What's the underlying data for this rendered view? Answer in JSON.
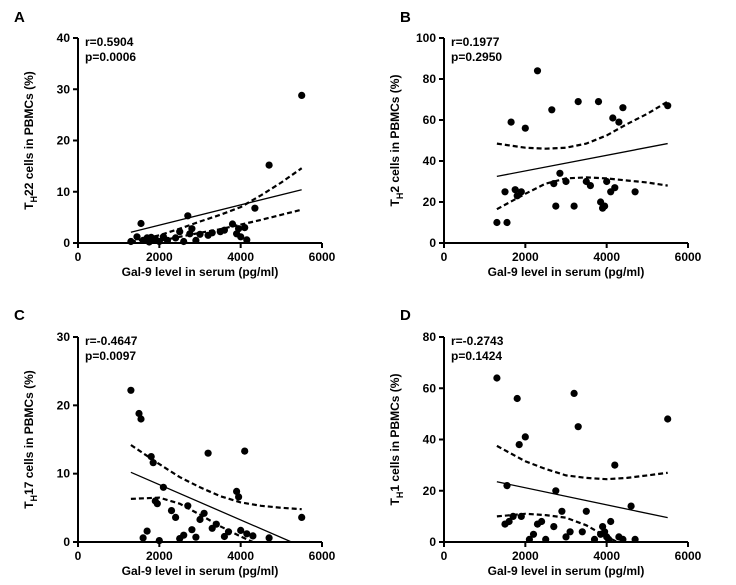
{
  "chart_data": [
    {
      "type": "scatter",
      "panel_label": "A",
      "xlabel": "Gal-9 level in serum (pg/ml)",
      "ylabel": {
        "base": "T",
        "sub": "H",
        "rest": "22 cells in PBMCs (%)"
      },
      "xlim": [
        0,
        6000
      ],
      "ylim": [
        0,
        40
      ],
      "x_ticks": [
        0,
        2000,
        4000,
        6000
      ],
      "y_ticks": [
        0,
        10,
        20,
        30,
        40
      ],
      "annotations": [
        "r=0.5904",
        "p=0.0006"
      ],
      "points": [
        [
          1300,
          0.3
        ],
        [
          1450,
          1.2
        ],
        [
          1550,
          3.8
        ],
        [
          1600,
          0.5
        ],
        [
          1700,
          1.0
        ],
        [
          1750,
          0.2
        ],
        [
          1800,
          1.1
        ],
        [
          1850,
          0.6
        ],
        [
          1900,
          0.8
        ],
        [
          2000,
          0.3
        ],
        [
          2100,
          1.2
        ],
        [
          2200,
          0.5
        ],
        [
          2400,
          1.0
        ],
        [
          2500,
          2.2
        ],
        [
          2600,
          0.3
        ],
        [
          2700,
          5.3
        ],
        [
          2750,
          1.8
        ],
        [
          2800,
          2.8
        ],
        [
          2900,
          0.5
        ],
        [
          3000,
          1.7
        ],
        [
          3200,
          1.5
        ],
        [
          3300,
          2.0
        ],
        [
          3500,
          2.2
        ],
        [
          3600,
          2.5
        ],
        [
          3800,
          3.7
        ],
        [
          3900,
          1.8
        ],
        [
          3950,
          2.8
        ],
        [
          4000,
          1.2
        ],
        [
          4100,
          3.0
        ],
        [
          4150,
          0.6
        ],
        [
          4350,
          6.8
        ],
        [
          4700,
          15.2
        ],
        [
          5500,
          28.8
        ]
      ],
      "fit": {
        "x": [
          1300,
          5500
        ],
        "y": [
          2.1,
          10.4
        ]
      },
      "ci_upper": {
        "x": [
          1300,
          2000,
          2500,
          3000,
          3500,
          4000,
          4500,
          5000,
          5500
        ],
        "y": [
          0.2,
          1.5,
          2.8,
          4.2,
          5.5,
          7.0,
          9.3,
          11.8,
          14.6
        ]
      },
      "ci_lower": {
        "x": [
          1300,
          1700,
          2000,
          2500,
          3000,
          3500,
          4000,
          4500,
          5000,
          5500
        ],
        "y": [
          -1.0,
          -0.2,
          0.4,
          1.2,
          2.0,
          2.7,
          3.6,
          4.5,
          5.5,
          6.5
        ]
      }
    },
    {
      "type": "scatter",
      "panel_label": "B",
      "xlabel": "Gal-9 level in serum (pg/ml)",
      "ylabel": {
        "base": "T",
        "sub": "H",
        "rest": "2 cells in PBMCs (%)"
      },
      "xlim": [
        0,
        6000
      ],
      "ylim": [
        0,
        100
      ],
      "x_ticks": [
        0,
        2000,
        4000,
        6000
      ],
      "y_ticks": [
        0,
        20,
        40,
        60,
        80,
        100
      ],
      "annotations": [
        "r=0.1977",
        "p=0.2950"
      ],
      "points": [
        [
          1300,
          10
        ],
        [
          1500,
          25
        ],
        [
          1550,
          10
        ],
        [
          1650,
          59
        ],
        [
          1750,
          26
        ],
        [
          1800,
          23
        ],
        [
          1900,
          25
        ],
        [
          2000,
          56
        ],
        [
          2300,
          84
        ],
        [
          2650,
          65
        ],
        [
          2700,
          29
        ],
        [
          2750,
          18
        ],
        [
          2850,
          34
        ],
        [
          3000,
          30
        ],
        [
          3200,
          18
        ],
        [
          3300,
          69
        ],
        [
          3500,
          30
        ],
        [
          3600,
          28
        ],
        [
          3800,
          69
        ],
        [
          3850,
          20
        ],
        [
          3900,
          17
        ],
        [
          3950,
          18
        ],
        [
          4000,
          30
        ],
        [
          4100,
          25
        ],
        [
          4150,
          61
        ],
        [
          4200,
          27
        ],
        [
          4300,
          59
        ],
        [
          4400,
          66
        ],
        [
          4700,
          25
        ],
        [
          5500,
          67
        ]
      ],
      "fit": {
        "x": [
          1300,
          5500
        ],
        "y": [
          32.5,
          48.5
        ]
      },
      "ci_upper": {
        "x": [
          1300,
          2000,
          2500,
          3000,
          3500,
          4000,
          4500,
          5000,
          5500
        ],
        "y": [
          48.5,
          46.5,
          46.0,
          46.5,
          48.5,
          52.5,
          58.0,
          63.0,
          69.0
        ]
      },
      "ci_lower": {
        "x": [
          1300,
          2000,
          2500,
          3000,
          3500,
          4000,
          4500,
          5000,
          5500
        ],
        "y": [
          16.5,
          24.0,
          29.0,
          31.5,
          32.0,
          31.5,
          30.5,
          29.5,
          28.0
        ]
      }
    },
    {
      "type": "scatter",
      "panel_label": "C",
      "xlabel": "Gal-9 level in serum (pg/ml)",
      "ylabel": {
        "base": "T",
        "sub": "H",
        "rest": "17 cells in PBMCs (%)"
      },
      "xlim": [
        0,
        6000
      ],
      "ylim": [
        0,
        30
      ],
      "x_ticks": [
        0,
        2000,
        4000,
        6000
      ],
      "y_ticks": [
        0,
        10,
        20,
        30
      ],
      "annotations": [
        "r=-0.4647",
        "p=0.0097"
      ],
      "points": [
        [
          1300,
          22.2
        ],
        [
          1500,
          18.8
        ],
        [
          1550,
          18.0
        ],
        [
          1600,
          0.6
        ],
        [
          1700,
          1.6
        ],
        [
          1800,
          12.5
        ],
        [
          1850,
          11.6
        ],
        [
          1900,
          6.0
        ],
        [
          1950,
          5.6
        ],
        [
          2000,
          0.2
        ],
        [
          2100,
          8.0
        ],
        [
          2300,
          4.6
        ],
        [
          2400,
          3.6
        ],
        [
          2500,
          0.5
        ],
        [
          2600,
          1.0
        ],
        [
          2700,
          5.3
        ],
        [
          2800,
          1.8
        ],
        [
          2900,
          0.7
        ],
        [
          3000,
          3.3
        ],
        [
          3100,
          4.2
        ],
        [
          3200,
          13.0
        ],
        [
          3300,
          2.0
        ],
        [
          3400,
          2.6
        ],
        [
          3600,
          0.8
        ],
        [
          3700,
          1.5
        ],
        [
          3900,
          7.4
        ],
        [
          3950,
          6.6
        ],
        [
          4000,
          1.7
        ],
        [
          4100,
          13.3
        ],
        [
          4150,
          1.2
        ],
        [
          4300,
          0.9
        ],
        [
          4700,
          0.6
        ],
        [
          5500,
          3.6
        ]
      ],
      "fit": {
        "x": [
          1300,
          5250
        ],
        "y": [
          10.2,
          0.0
        ]
      },
      "ci_upper": {
        "x": [
          1300,
          2000,
          2500,
          3000,
          3500,
          4000,
          4500,
          5000,
          5500
        ],
        "y": [
          14.2,
          11.4,
          9.5,
          8.0,
          6.7,
          5.8,
          5.3,
          5.0,
          4.8
        ]
      },
      "ci_lower": {
        "x": [
          1300,
          2000,
          2500,
          3000,
          3500,
          4000,
          4300,
          4700,
          5100
        ],
        "y": [
          6.3,
          6.5,
          5.6,
          4.0,
          2.3,
          0.8,
          0.0,
          -1.0,
          -2.0
        ]
      }
    },
    {
      "type": "scatter",
      "panel_label": "D",
      "xlabel": "Gal-9 level in serum (pg/ml)",
      "ylabel": {
        "base": "T",
        "sub": "H",
        "rest": "1 cells in PBMCs (%)"
      },
      "xlim": [
        0,
        6000
      ],
      "ylim": [
        0,
        80
      ],
      "x_ticks": [
        0,
        2000,
        4000,
        6000
      ],
      "y_ticks": [
        0,
        20,
        40,
        60,
        80
      ],
      "annotations": [
        "r=-0.2743",
        "p=0.1424"
      ],
      "points": [
        [
          1300,
          64
        ],
        [
          1500,
          7
        ],
        [
          1550,
          22
        ],
        [
          1600,
          8
        ],
        [
          1700,
          10
        ],
        [
          1800,
          56
        ],
        [
          1850,
          38
        ],
        [
          1900,
          10
        ],
        [
          2000,
          41
        ],
        [
          2100,
          1
        ],
        [
          2200,
          3
        ],
        [
          2300,
          7
        ],
        [
          2400,
          8
        ],
        [
          2500,
          1
        ],
        [
          2700,
          6
        ],
        [
          2750,
          20
        ],
        [
          2900,
          12
        ],
        [
          3000,
          2
        ],
        [
          3100,
          4
        ],
        [
          3200,
          58
        ],
        [
          3300,
          45
        ],
        [
          3400,
          4
        ],
        [
          3500,
          12
        ],
        [
          3700,
          1
        ],
        [
          3850,
          3
        ],
        [
          3900,
          6
        ],
        [
          3950,
          4
        ],
        [
          4000,
          2
        ],
        [
          4050,
          1
        ],
        [
          4100,
          8
        ],
        [
          4200,
          30
        ],
        [
          4300,
          2
        ],
        [
          4400,
          1
        ],
        [
          4600,
          14
        ],
        [
          4700,
          1
        ],
        [
          5500,
          48
        ]
      ],
      "fit": {
        "x": [
          1300,
          5500
        ],
        "y": [
          23.5,
          9.5
        ]
      },
      "ci_upper": {
        "x": [
          1300,
          2000,
          2500,
          3000,
          3500,
          4000,
          4500,
          5000,
          5500
        ],
        "y": [
          37.5,
          31.5,
          28.5,
          26.0,
          25.0,
          24.5,
          25.0,
          26.0,
          27.0
        ]
      },
      "ci_lower": {
        "x": [
          1300,
          2000,
          2500,
          3000,
          3500,
          4000,
          4200,
          4500,
          4800
        ],
        "y": [
          10.0,
          11.0,
          10.5,
          9.5,
          6.5,
          2.0,
          0.5,
          -2.5,
          -6.0
        ]
      }
    }
  ]
}
